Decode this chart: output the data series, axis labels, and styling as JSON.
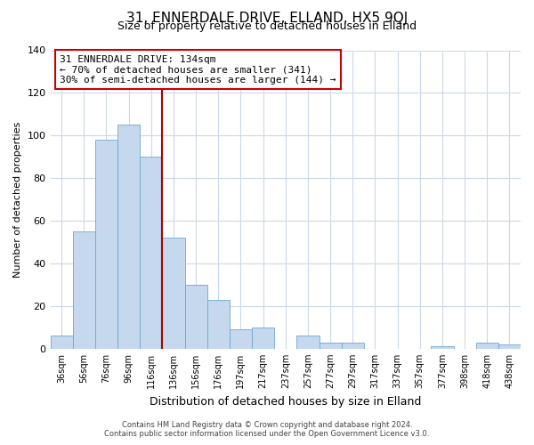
{
  "title": "31, ENNERDALE DRIVE, ELLAND, HX5 9QJ",
  "subtitle": "Size of property relative to detached houses in Elland",
  "xlabel": "Distribution of detached houses by size in Elland",
  "ylabel": "Number of detached properties",
  "categories": [
    "36sqm",
    "56sqm",
    "76sqm",
    "96sqm",
    "116sqm",
    "136sqm",
    "156sqm",
    "176sqm",
    "197sqm",
    "217sqm",
    "237sqm",
    "257sqm",
    "277sqm",
    "297sqm",
    "317sqm",
    "337sqm",
    "357sqm",
    "377sqm",
    "398sqm",
    "418sqm",
    "438sqm"
  ],
  "values": [
    6,
    55,
    98,
    105,
    90,
    52,
    30,
    23,
    9,
    10,
    0,
    6,
    3,
    3,
    0,
    0,
    0,
    1,
    0,
    3,
    2
  ],
  "bar_color": "#c5d8ed",
  "bar_edge_color": "#6fa8d0",
  "vline_x_index": 4.5,
  "vline_color": "#aa0000",
  "annotation_text": "31 ENNERDALE DRIVE: 134sqm\n← 70% of detached houses are smaller (341)\n30% of semi-detached houses are larger (144) →",
  "annotation_box_color": "#ffffff",
  "annotation_box_edge": "#cc0000",
  "ylim": [
    0,
    140
  ],
  "yticks": [
    0,
    20,
    40,
    60,
    80,
    100,
    120,
    140
  ],
  "footer_line1": "Contains HM Land Registry data © Crown copyright and database right 2024.",
  "footer_line2": "Contains public sector information licensed under the Open Government Licence v3.0.",
  "background_color": "#ffffff",
  "grid_color": "#ccd9e8"
}
